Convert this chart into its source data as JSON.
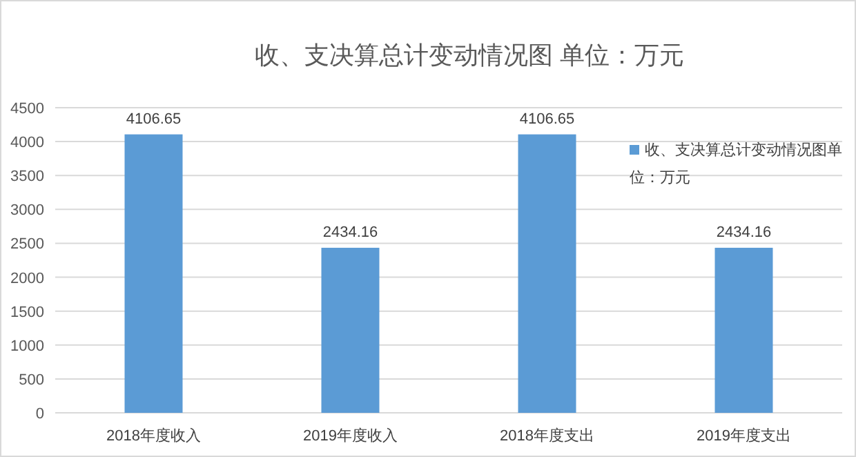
{
  "chart_data": {
    "type": "bar",
    "title": "收、支决算总计变动情况图 单位：万元",
    "categories": [
      "2018年度收入",
      "2019年度收入",
      "2018年度支出",
      "2019年度支出"
    ],
    "series": [
      {
        "name": "收、支决算总计变动情况图单位：万元",
        "color": "#5b9bd5",
        "values": [
          4106.65,
          2434.16,
          4106.65,
          2434.16
        ]
      }
    ],
    "ylim": [
      0,
      4500
    ],
    "yticks": [
      0,
      500,
      1000,
      1500,
      2000,
      2500,
      3000,
      3500,
      4000,
      4500
    ],
    "grid": "y",
    "legend": "right",
    "data_labels": true
  }
}
